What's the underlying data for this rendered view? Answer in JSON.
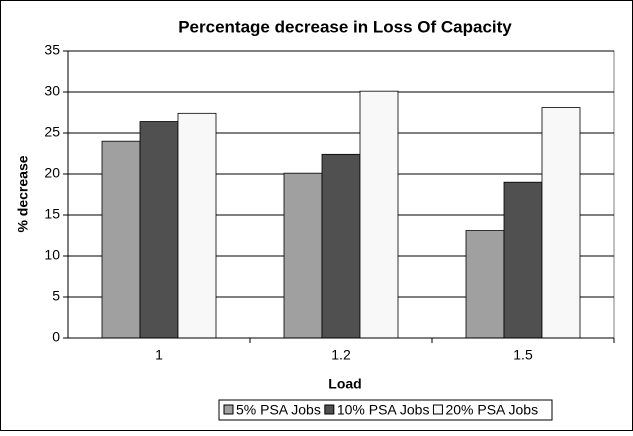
{
  "chart_data": {
    "type": "bar",
    "title": "Percentage decrease in Loss Of Capacity",
    "x_label": "Load",
    "y_label": "% decrease",
    "categories": [
      "1",
      "1.2",
      "1.5"
    ],
    "series": [
      {
        "name": "5% PSA Jobs",
        "color": "#a0a0a0",
        "values": [
          24,
          20.1,
          13.1
        ]
      },
      {
        "name": "10% PSA Jobs",
        "color": "#505050",
        "values": [
          26.4,
          22.4,
          19
        ]
      },
      {
        "name": "20% PSA Jobs",
        "color": "#f8f8f8",
        "values": [
          27.4,
          30.1,
          28.1
        ]
      }
    ],
    "ylim": [
      0,
      35
    ],
    "yticks": [
      0,
      5,
      10,
      15,
      20,
      25,
      30,
      35
    ],
    "grid": true,
    "legend": "bottom"
  }
}
